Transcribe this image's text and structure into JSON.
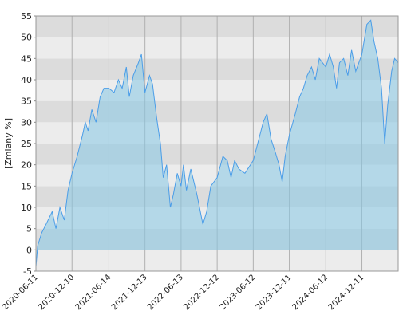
{
  "chart_data": {
    "type": "area",
    "y_label": "[Zmiany %]",
    "x": [
      "2020-06-11",
      "2020-06-20",
      "2020-07-10",
      "2020-08-01",
      "2020-09-01",
      "2020-09-20",
      "2020-10-10",
      "2020-11-01",
      "2020-11-20",
      "2020-12-10",
      "2021-01-05",
      "2021-02-01",
      "2021-02-15",
      "2021-03-01",
      "2021-03-20",
      "2021-04-10",
      "2021-05-01",
      "2021-05-20",
      "2021-06-14",
      "2021-07-10",
      "2021-08-01",
      "2021-08-20",
      "2021-09-10",
      "2021-09-25",
      "2021-10-15",
      "2021-11-10",
      "2021-11-25",
      "2021-12-13",
      "2022-01-05",
      "2022-01-20",
      "2022-02-10",
      "2022-03-01",
      "2022-03-15",
      "2022-04-01",
      "2022-04-20",
      "2022-05-05",
      "2022-05-25",
      "2022-06-13",
      "2022-06-25",
      "2022-07-10",
      "2022-08-01",
      "2022-09-01",
      "2022-10-01",
      "2022-10-20",
      "2022-11-10",
      "2022-12-12",
      "2023-01-10",
      "2023-02-01",
      "2023-02-20",
      "2023-03-10",
      "2023-04-01",
      "2023-05-01",
      "2023-06-12",
      "2023-07-10",
      "2023-08-01",
      "2023-08-20",
      "2023-09-10",
      "2023-10-01",
      "2023-10-20",
      "2023-11-05",
      "2023-11-20",
      "2023-12-11",
      "2024-01-10",
      "2024-02-01",
      "2024-02-20",
      "2024-03-10",
      "2024-04-01",
      "2024-04-20",
      "2024-05-10",
      "2024-06-12",
      "2024-07-01",
      "2024-07-20",
      "2024-08-05",
      "2024-08-20",
      "2024-09-10",
      "2024-10-01",
      "2024-10-20",
      "2024-11-10",
      "2024-12-11",
      "2025-01-05",
      "2025-01-25",
      "2025-02-10",
      "2025-03-01",
      "2025-03-20",
      "2025-04-05",
      "2025-04-20",
      "2025-05-10",
      "2025-05-25",
      "2025-06-12"
    ],
    "series": [
      {
        "name": "Zmiany",
        "color": "#4a9de8",
        "fill": "rgba(135,200,230,0.55)",
        "values": [
          -4,
          1,
          4,
          6,
          9,
          5,
          10,
          7,
          14,
          18,
          22,
          27,
          30,
          28,
          33,
          30,
          36,
          38,
          38,
          37,
          40,
          38,
          43,
          36,
          41,
          44,
          46,
          37,
          41,
          39,
          31,
          25,
          17,
          20,
          10,
          13,
          18,
          15,
          20,
          14,
          19,
          13,
          6,
          9,
          15,
          17,
          22,
          21,
          17,
          21,
          19,
          18,
          21,
          26,
          30,
          32,
          26,
          23,
          20,
          16,
          22,
          27,
          32,
          36,
          38,
          41,
          43,
          40,
          45,
          43,
          46,
          43,
          38,
          44,
          45,
          41,
          47,
          42,
          46,
          53,
          54,
          49,
          45,
          38,
          25,
          34,
          42,
          45,
          44
        ]
      }
    ],
    "xlim": [
      "2020-06-11",
      "2025-06-12"
    ],
    "xticks": [
      "2020-06-11",
      "2020-12-10",
      "2021-06-14",
      "2021-12-13",
      "2022-06-13",
      "2022-12-12",
      "2023-06-12",
      "2023-12-11",
      "2024-06-12",
      "2024-12-11"
    ],
    "ylim": [
      -5,
      55
    ],
    "yticks": [
      -5,
      0,
      5,
      10,
      15,
      20,
      25,
      30,
      35,
      40,
      45,
      50,
      55
    ],
    "grid": true
  }
}
